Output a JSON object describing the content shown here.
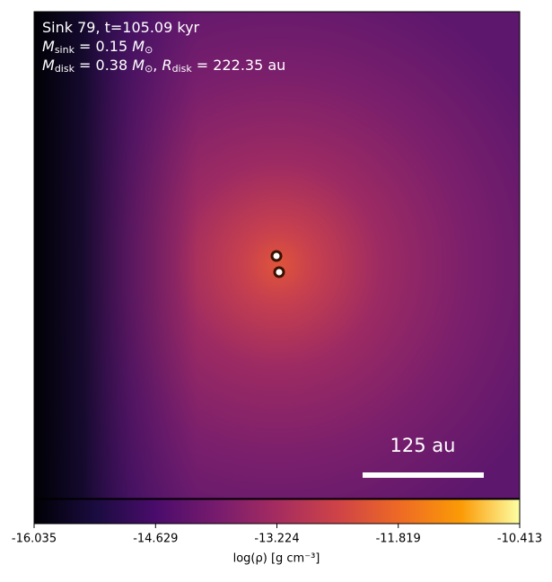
{
  "chart_data": {
    "type": "image",
    "annotation_lines": [
      [
        {
          "text": "Sink 79, t=105.09 kyr"
        }
      ],
      [
        {
          "text": "M"
        },
        {
          "text": "sink",
          "sub": true
        },
        {
          "text": " = 0.15 "
        },
        {
          "text": "M"
        },
        {
          "text": "⊙",
          "sub": true
        }
      ],
      [
        {
          "text": "M"
        },
        {
          "text": "disk",
          "sub": true
        },
        {
          "text": " = 0.38 "
        },
        {
          "text": "M"
        },
        {
          "text": "⊙",
          "sub": true
        },
        {
          "text": ", "
        },
        {
          "text": "R"
        },
        {
          "text": "disk",
          "sub": true
        },
        {
          "text": " = 222.35 au"
        }
      ]
    ],
    "scale_bar_label": "125 au",
    "colorbar": {
      "label": "log(ρ) [g cm⁻³]",
      "colormap": "inferno",
      "clim": [
        -16.035,
        -10.413
      ],
      "ticks": [
        -16.035,
        -14.629,
        -13.224,
        -11.819,
        -10.413
      ]
    }
  }
}
